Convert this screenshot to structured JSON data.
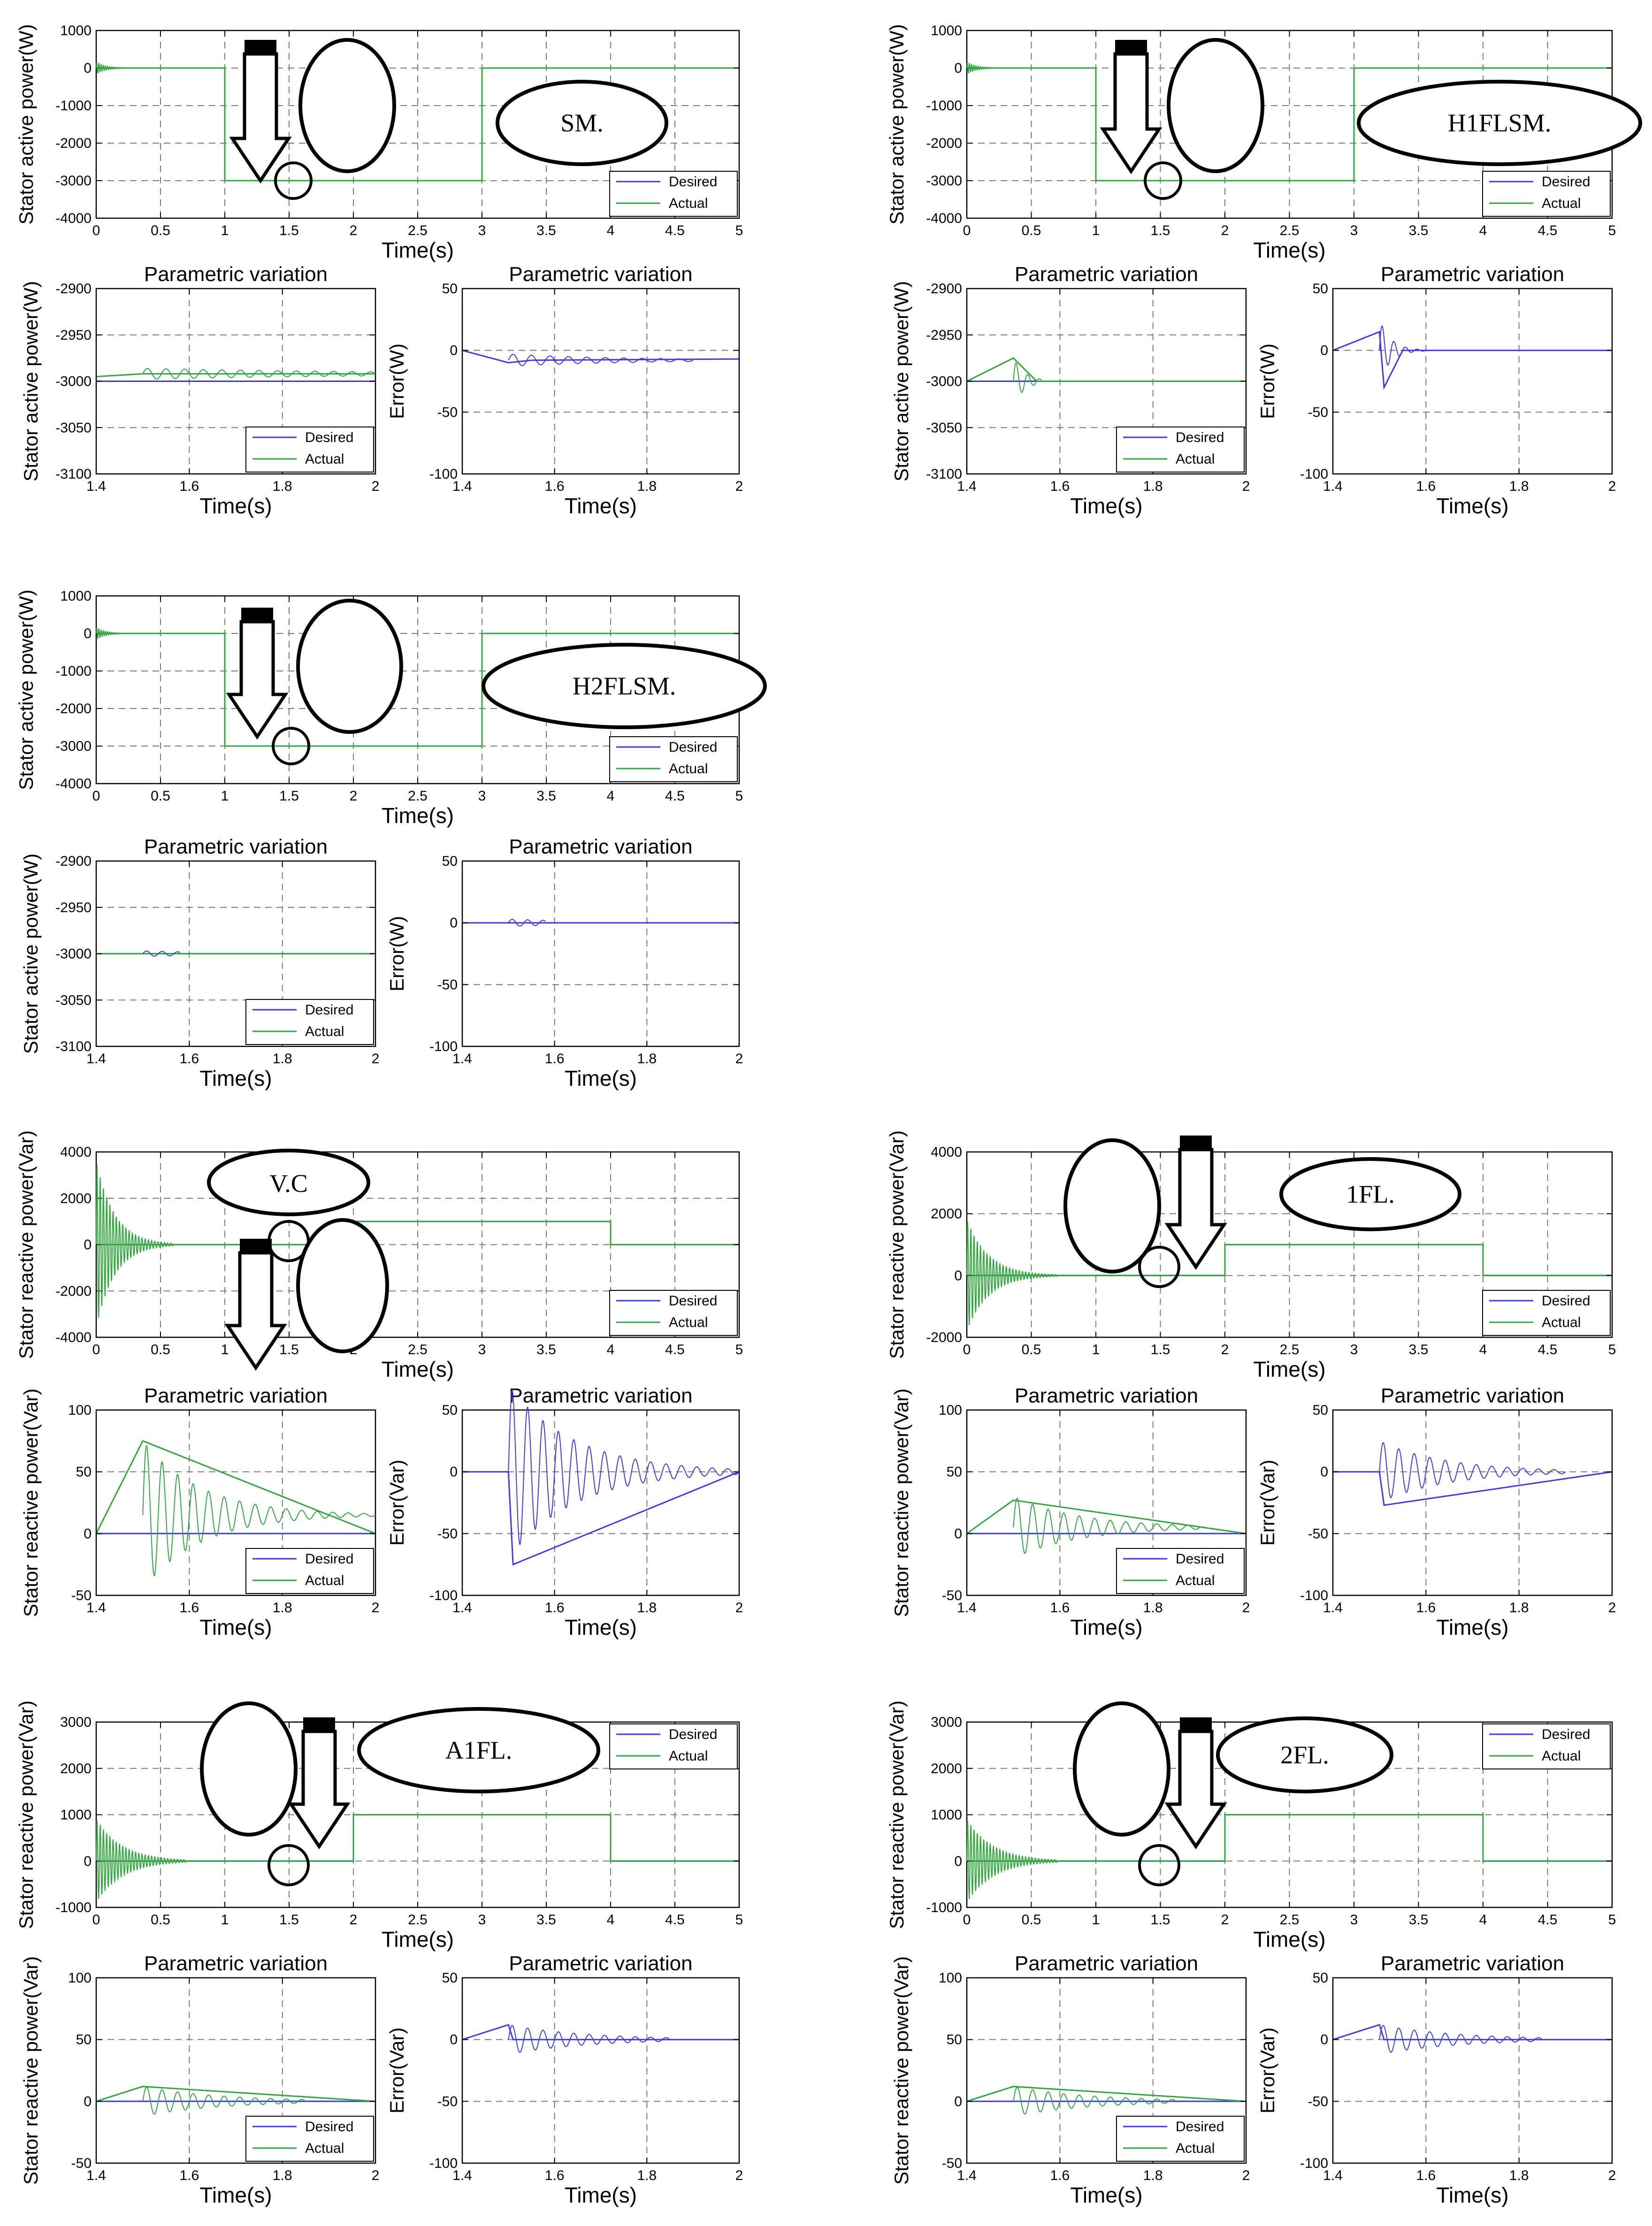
{
  "figure": {
    "label_vc": "V.C"
  },
  "colors": {
    "desired": "#3a3af0",
    "actual": "#2ea83a",
    "axis": "#000000",
    "grid": "#7a7a7a"
  },
  "chart_data": [
    {
      "id": "g1_main",
      "type": "line",
      "ylabel": "Stator active power(W)",
      "xlabel": "Time(s)",
      "xlim": [
        0,
        5
      ],
      "ylim": [
        -4000,
        1000
      ],
      "xticks": [
        0,
        0.5,
        1,
        1.5,
        2,
        2.5,
        3,
        3.5,
        4,
        4.5,
        5
      ],
      "yticks": [
        -4000,
        -3000,
        -2000,
        -1000,
        0,
        1000
      ],
      "grid": "on",
      "legend_position": "bottom-right",
      "series": [
        {
          "name": "Desired",
          "x": [
            0,
            1,
            1,
            3,
            3,
            5
          ],
          "y": [
            0,
            0,
            -3000,
            -3000,
            0,
            0
          ]
        },
        {
          "name": "Actual",
          "x": [
            0,
            1,
            1,
            3,
            3,
            5
          ],
          "y": [
            0,
            0,
            -3000,
            -3000,
            0,
            0
          ]
        }
      ],
      "annotation": "SM."
    },
    {
      "id": "g1_zoom",
      "type": "line",
      "title": "Parametric variation",
      "ylabel": "Stator active power(W)",
      "xlabel": "Time(s)",
      "xlim": [
        1.4,
        2
      ],
      "ylim": [
        -3100,
        -2900
      ],
      "xticks": [
        1.4,
        1.6,
        1.8,
        2
      ],
      "yticks": [
        -3100,
        -3050,
        -3000,
        -2950,
        -2900
      ],
      "grid": "on",
      "legend_position": "bottom-right",
      "series": [
        {
          "name": "Desired",
          "x": [
            1.4,
            2
          ],
          "y": [
            -3000,
            -3000
          ]
        },
        {
          "name": "Actual",
          "x": [
            1.4,
            1.5,
            2
          ],
          "y": [
            -2995,
            -2992,
            -2992
          ]
        }
      ]
    },
    {
      "id": "g1_err",
      "type": "line",
      "title": "Parametric variation",
      "ylabel": "Error(W)",
      "xlabel": "Time(s)",
      "xlim": [
        1.4,
        2
      ],
      "ylim": [
        -100,
        50
      ],
      "xticks": [
        1.4,
        1.6,
        1.8,
        2
      ],
      "yticks": [
        -100,
        -50,
        0,
        50
      ],
      "grid": "on",
      "series": [
        {
          "name": "Error",
          "x": [
            1.4,
            1.5,
            1.55,
            2
          ],
          "y": [
            0,
            -10,
            -8,
            -7
          ]
        }
      ]
    },
    {
      "id": "g2_main",
      "type": "line",
      "ylabel": "Stator active power(W)",
      "xlabel": "Time(s)",
      "xlim": [
        0,
        5
      ],
      "ylim": [
        -4000,
        1000
      ],
      "xticks": [
        0,
        0.5,
        1,
        1.5,
        2,
        2.5,
        3,
        3.5,
        4,
        4.5,
        5
      ],
      "yticks": [
        -4000,
        -3000,
        -2000,
        -1000,
        0,
        1000
      ],
      "grid": "on",
      "legend_position": "bottom-right",
      "series": [
        {
          "name": "Desired",
          "x": [
            0,
            1,
            1,
            3,
            3,
            5
          ],
          "y": [
            0,
            0,
            -3000,
            -3000,
            0,
            0
          ]
        },
        {
          "name": "Actual",
          "x": [
            0,
            1,
            1,
            3,
            3,
            5
          ],
          "y": [
            0,
            0,
            -3000,
            -3000,
            0,
            0
          ]
        }
      ],
      "annotation": "H1FLSM."
    },
    {
      "id": "g2_zoom",
      "type": "line",
      "title": "Parametric variation",
      "ylabel": "Stator active power(W)",
      "xlabel": "Time(s)",
      "xlim": [
        1.4,
        2
      ],
      "ylim": [
        -3100,
        -2900
      ],
      "xticks": [
        1.4,
        1.6,
        1.8,
        2
      ],
      "yticks": [
        -3100,
        -3050,
        -3000,
        -2950,
        -2900
      ],
      "grid": "on",
      "legend_position": "bottom-right",
      "series": [
        {
          "name": "Desired",
          "x": [
            1.4,
            2
          ],
          "y": [
            -3000,
            -3000
          ]
        },
        {
          "name": "Actual",
          "x": [
            1.4,
            1.5,
            1.55,
            2
          ],
          "y": [
            -3000,
            -2975,
            -3000,
            -3000
          ]
        }
      ]
    },
    {
      "id": "g2_err",
      "type": "line",
      "title": "Parametric variation",
      "ylabel": "Error(W)",
      "xlabel": "Time(s)",
      "xlim": [
        1.4,
        2
      ],
      "ylim": [
        -100,
        50
      ],
      "xticks": [
        1.4,
        1.6,
        1.8,
        2
      ],
      "yticks": [
        -100,
        -50,
        0,
        50
      ],
      "grid": "on",
      "series": [
        {
          "name": "Error",
          "x": [
            1.4,
            1.5,
            1.51,
            1.55,
            2
          ],
          "y": [
            0,
            15,
            -30,
            0,
            0
          ]
        }
      ]
    },
    {
      "id": "g3_main",
      "type": "line",
      "ylabel": "Stator active power(W)",
      "xlabel": "Time(s)",
      "xlim": [
        0,
        5
      ],
      "ylim": [
        -4000,
        1000
      ],
      "xticks": [
        0,
        0.5,
        1,
        1.5,
        2,
        2.5,
        3,
        3.5,
        4,
        4.5,
        5
      ],
      "yticks": [
        -4000,
        -3000,
        -2000,
        -1000,
        0,
        1000
      ],
      "grid": "on",
      "legend_position": "bottom-right",
      "series": [
        {
          "name": "Desired",
          "x": [
            0,
            1,
            1,
            3,
            3,
            5
          ],
          "y": [
            0,
            0,
            -3000,
            -3000,
            0,
            0
          ]
        },
        {
          "name": "Actual",
          "x": [
            0,
            1,
            1,
            3,
            3,
            5
          ],
          "y": [
            0,
            0,
            -3000,
            -3000,
            0,
            0
          ]
        }
      ],
      "annotation": "H2FLSM."
    },
    {
      "id": "g3_zoom",
      "type": "line",
      "title": "Parametric variation",
      "ylabel": "Stator active power(W)",
      "xlabel": "Time(s)",
      "xlim": [
        1.4,
        2
      ],
      "ylim": [
        -3100,
        -2900
      ],
      "xticks": [
        1.4,
        1.6,
        1.8,
        2
      ],
      "yticks": [
        -3100,
        -3050,
        -3000,
        -2950,
        -2900
      ],
      "grid": "on",
      "legend_position": "bottom-right",
      "series": [
        {
          "name": "Desired",
          "x": [
            1.4,
            2
          ],
          "y": [
            -3000,
            -3000
          ]
        },
        {
          "name": "Actual",
          "x": [
            1.4,
            2
          ],
          "y": [
            -3000,
            -3000
          ]
        }
      ]
    },
    {
      "id": "g3_err",
      "type": "line",
      "title": "Parametric variation",
      "ylabel": "Error(W)",
      "xlabel": "Time(s)",
      "xlim": [
        1.4,
        2
      ],
      "ylim": [
        -100,
        50
      ],
      "xticks": [
        1.4,
        1.6,
        1.8,
        2
      ],
      "yticks": [
        -100,
        -50,
        0,
        50
      ],
      "grid": "on",
      "series": [
        {
          "name": "Error",
          "x": [
            1.4,
            2
          ],
          "y": [
            0,
            0
          ]
        }
      ]
    },
    {
      "id": "g4_main",
      "type": "line",
      "ylabel": "Stator reactive power(Var)",
      "xlabel": "Time(s)",
      "xlim": [
        0,
        5
      ],
      "ylim": [
        -4000,
        4000
      ],
      "xticks": [
        0,
        0.5,
        1,
        1.5,
        2,
        2.5,
        3,
        3.5,
        4,
        4.5,
        5
      ],
      "yticks": [
        -4000,
        -2000,
        0,
        2000,
        4000
      ],
      "grid": "on",
      "legend_position": "bottom-right",
      "series": [
        {
          "name": "Desired",
          "x": [
            0,
            2,
            2,
            4,
            4,
            5
          ],
          "y": [
            0,
            0,
            1000,
            1000,
            0,
            0
          ]
        },
        {
          "name": "Actual",
          "x": [
            0,
            2,
            2,
            4,
            4,
            5
          ],
          "y": [
            0,
            0,
            1000,
            1000,
            0,
            0
          ]
        }
      ]
    },
    {
      "id": "g4_zoom",
      "type": "line",
      "title": "Parametric variation",
      "ylabel": "Stator reactive power(Var)",
      "xlabel": "Time(s)",
      "xlim": [
        1.4,
        2
      ],
      "ylim": [
        -50,
        100
      ],
      "xticks": [
        1.4,
        1.6,
        1.8,
        2
      ],
      "yticks": [
        -50,
        0,
        50,
        100
      ],
      "grid": "on",
      "legend_position": "bottom-right",
      "series": [
        {
          "name": "Desired",
          "x": [
            1.4,
            2
          ],
          "y": [
            0,
            0
          ]
        },
        {
          "name": "Actual",
          "x": [
            1.4,
            1.5,
            2
          ],
          "y": [
            0,
            75,
            0
          ]
        }
      ]
    },
    {
      "id": "g4_err",
      "type": "line",
      "title": "Parametric variation",
      "ylabel": "Error(Var)",
      "xlabel": "Time(s)",
      "xlim": [
        1.4,
        2
      ],
      "ylim": [
        -100,
        50
      ],
      "xticks": [
        1.4,
        1.6,
        1.8,
        2
      ],
      "yticks": [
        -100,
        -50,
        0,
        50
      ],
      "grid": "on",
      "series": [
        {
          "name": "Error",
          "x": [
            1.4,
            1.5,
            1.51,
            2
          ],
          "y": [
            0,
            0,
            -75,
            0
          ]
        }
      ]
    },
    {
      "id": "g5_main",
      "type": "line",
      "ylabel": "Stator reactive power(Var)",
      "xlabel": "Time(s)",
      "xlim": [
        0,
        5
      ],
      "ylim": [
        -2000,
        4000
      ],
      "xticks": [
        0,
        0.5,
        1,
        1.5,
        2,
        2.5,
        3,
        3.5,
        4,
        4.5,
        5
      ],
      "yticks": [
        -2000,
        0,
        2000,
        4000
      ],
      "grid": "on",
      "legend_position": "bottom-right",
      "series": [
        {
          "name": "Desired",
          "x": [
            0,
            2,
            2,
            4,
            4,
            5
          ],
          "y": [
            0,
            0,
            1000,
            1000,
            0,
            0
          ]
        },
        {
          "name": "Actual",
          "x": [
            0,
            2,
            2,
            4,
            4,
            5
          ],
          "y": [
            0,
            0,
            1000,
            1000,
            0,
            0
          ]
        }
      ],
      "annotation": "1FL."
    },
    {
      "id": "g5_zoom",
      "type": "line",
      "title": "Parametric variation",
      "ylabel": "Stator reactive power(Var)",
      "xlabel": "Time(s)",
      "xlim": [
        1.4,
        2
      ],
      "ylim": [
        -50,
        100
      ],
      "xticks": [
        1.4,
        1.6,
        1.8,
        2
      ],
      "yticks": [
        -50,
        0,
        50,
        100
      ],
      "grid": "on",
      "legend_position": "bottom-right",
      "series": [
        {
          "name": "Desired",
          "x": [
            1.4,
            2
          ],
          "y": [
            0,
            0
          ]
        },
        {
          "name": "Actual",
          "x": [
            1.4,
            1.5,
            2
          ],
          "y": [
            0,
            27,
            0
          ]
        }
      ]
    },
    {
      "id": "g5_err",
      "type": "line",
      "title": "Parametric variation",
      "ylabel": "Error(Var)",
      "xlabel": "Time(s)",
      "xlim": [
        1.4,
        2
      ],
      "ylim": [
        -100,
        50
      ],
      "xticks": [
        1.4,
        1.6,
        1.8,
        2
      ],
      "yticks": [
        -100,
        -50,
        0,
        50
      ],
      "grid": "on",
      "series": [
        {
          "name": "Error",
          "x": [
            1.4,
            1.5,
            1.51,
            2
          ],
          "y": [
            0,
            0,
            -27,
            0
          ]
        }
      ]
    },
    {
      "id": "g6_main",
      "type": "line",
      "ylabel": "Stator reactive power(Var)",
      "xlabel": "Time(s)",
      "xlim": [
        0,
        5
      ],
      "ylim": [
        -1000,
        3000
      ],
      "xticks": [
        0,
        0.5,
        1,
        1.5,
        2,
        2.5,
        3,
        3.5,
        4,
        4.5,
        5
      ],
      "yticks": [
        -1000,
        0,
        1000,
        2000,
        3000
      ],
      "grid": "on",
      "legend_position": "top-right",
      "series": [
        {
          "name": "Desired",
          "x": [
            0,
            2,
            2,
            4,
            4,
            5
          ],
          "y": [
            0,
            0,
            1000,
            1000,
            0,
            0
          ]
        },
        {
          "name": "Actual",
          "x": [
            0,
            2,
            2,
            4,
            4,
            5
          ],
          "y": [
            0,
            0,
            1000,
            1000,
            0,
            0
          ]
        }
      ],
      "annotation": "A1FL."
    },
    {
      "id": "g6_zoom",
      "type": "line",
      "title": "Parametric variation",
      "ylabel": "Stator reactive power(Var)",
      "xlabel": "Time(s)",
      "xlim": [
        1.4,
        2
      ],
      "ylim": [
        -50,
        100
      ],
      "xticks": [
        1.4,
        1.6,
        1.8,
        2
      ],
      "yticks": [
        -50,
        0,
        50,
        100
      ],
      "grid": "on",
      "legend_position": "bottom-right",
      "series": [
        {
          "name": "Desired",
          "x": [
            1.4,
            2
          ],
          "y": [
            0,
            0
          ]
        },
        {
          "name": "Actual",
          "x": [
            1.4,
            1.5,
            2
          ],
          "y": [
            0,
            12,
            0
          ]
        }
      ]
    },
    {
      "id": "g6_err",
      "type": "line",
      "title": "Parametric variation",
      "ylabel": "Error(Var)",
      "xlabel": "Time(s)",
      "xlim": [
        1.4,
        2
      ],
      "ylim": [
        -100,
        50
      ],
      "xticks": [
        1.4,
        1.6,
        1.8,
        2
      ],
      "yticks": [
        -100,
        -50,
        0,
        50
      ],
      "grid": "on",
      "series": [
        {
          "name": "Error",
          "x": [
            1.4,
            1.5,
            1.51,
            2
          ],
          "y": [
            0,
            12,
            0,
            0
          ]
        }
      ]
    },
    {
      "id": "g7_main",
      "type": "line",
      "ylabel": "Stator reactive power(Var)",
      "xlabel": "Time(s)",
      "xlim": [
        0,
        5
      ],
      "ylim": [
        -1000,
        3000
      ],
      "xticks": [
        0,
        0.5,
        1,
        1.5,
        2,
        2.5,
        3,
        3.5,
        4,
        4.5,
        5
      ],
      "yticks": [
        -1000,
        0,
        1000,
        2000,
        3000
      ],
      "grid": "on",
      "legend_position": "top-right",
      "series": [
        {
          "name": "Desired",
          "x": [
            0,
            2,
            2,
            4,
            4,
            5
          ],
          "y": [
            0,
            0,
            1000,
            1000,
            0,
            0
          ]
        },
        {
          "name": "Actual",
          "x": [
            0,
            2,
            2,
            4,
            4,
            5
          ],
          "y": [
            0,
            0,
            1000,
            1000,
            0,
            0
          ]
        }
      ],
      "annotation": "2FL."
    },
    {
      "id": "g7_zoom",
      "type": "line",
      "title": "Parametric variation",
      "ylabel": "Stator reactive power(Var)",
      "xlabel": "Time(s)",
      "xlim": [
        1.4,
        2
      ],
      "ylim": [
        -50,
        100
      ],
      "xticks": [
        1.4,
        1.6,
        1.8,
        2
      ],
      "yticks": [
        -50,
        0,
        50,
        100
      ],
      "grid": "on",
      "legend_position": "bottom-right",
      "series": [
        {
          "name": "Desired",
          "x": [
            1.4,
            2
          ],
          "y": [
            0,
            0
          ]
        },
        {
          "name": "Actual",
          "x": [
            1.4,
            1.5,
            2
          ],
          "y": [
            0,
            12,
            0
          ]
        }
      ]
    },
    {
      "id": "g7_err",
      "type": "line",
      "title": "Parametric variation",
      "ylabel": "Error(Var)",
      "xlabel": "Time(s)",
      "xlim": [
        1.4,
        2
      ],
      "ylim": [
        -100,
        50
      ],
      "xticks": [
        1.4,
        1.6,
        1.8,
        2
      ],
      "yticks": [
        -100,
        -50,
        0,
        50
      ],
      "grid": "on",
      "series": [
        {
          "name": "Error",
          "x": [
            1.4,
            1.5,
            1.51,
            2
          ],
          "y": [
            0,
            12,
            0,
            0
          ]
        }
      ]
    }
  ]
}
